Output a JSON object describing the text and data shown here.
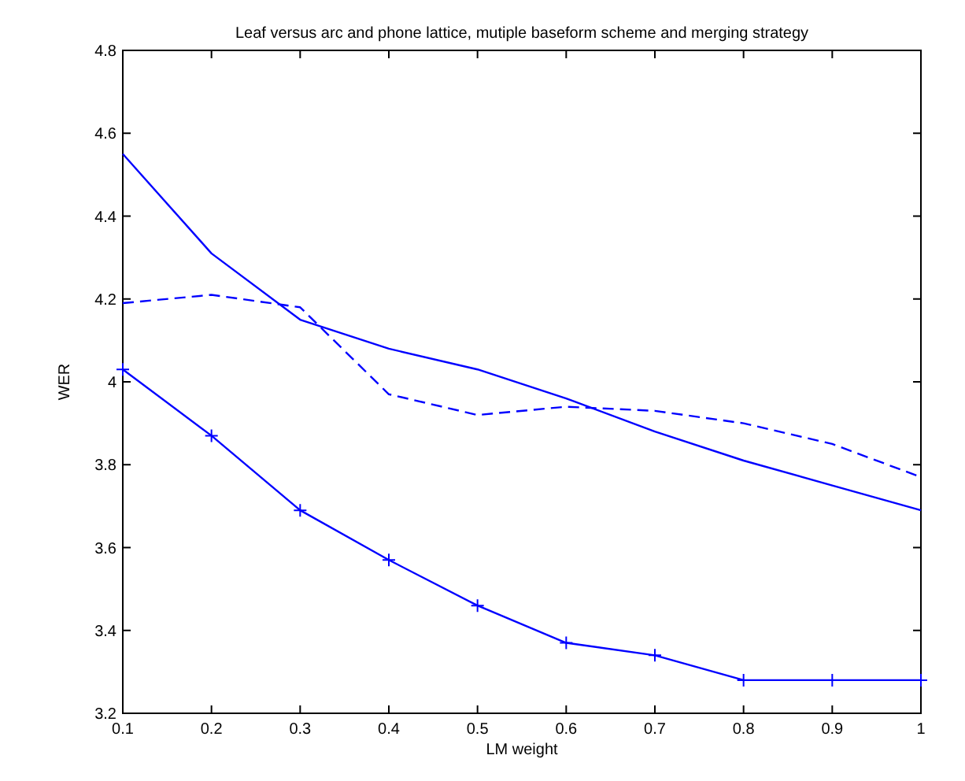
{
  "chart_data": {
    "type": "line",
    "title": "Leaf versus arc and phone lattice, mutiple baseform scheme and merging strategy",
    "xlabel": "LM weight",
    "ylabel": "WER",
    "x": [
      0.1,
      0.2,
      0.3,
      0.4,
      0.5,
      0.6,
      0.7,
      0.8,
      0.9,
      1
    ],
    "series": [
      {
        "color": "#0000ff",
        "line_style": "solid",
        "marker": "none",
        "values": [
          4.55,
          4.31,
          4.15,
          4.08,
          4.03,
          3.96,
          3.88,
          3.81,
          3.75,
          3.69
        ]
      },
      {
        "color": "#0000ff",
        "line_style": "dashed",
        "marker": "none",
        "values": [
          4.19,
          4.21,
          4.18,
          3.97,
          3.92,
          3.94,
          3.93,
          3.9,
          3.85,
          3.77
        ]
      },
      {
        "color": "#0000ff",
        "line_style": "solid",
        "marker": "cross",
        "values": [
          4.03,
          3.87,
          3.69,
          3.57,
          3.46,
          3.37,
          3.34,
          3.28,
          3.28,
          3.28
        ]
      }
    ],
    "xlim": [
      0.1,
      1
    ],
    "xticks": [
      0.1,
      0.2,
      0.3,
      0.4,
      0.5,
      0.6,
      0.7,
      0.8,
      0.9,
      1
    ],
    "ylim": [
      3.2,
      4.8
    ],
    "yticks": [
      3.2,
      3.4,
      3.6,
      3.8,
      4,
      4.2,
      4.4,
      4.6,
      4.8
    ],
    "grid": false
  }
}
